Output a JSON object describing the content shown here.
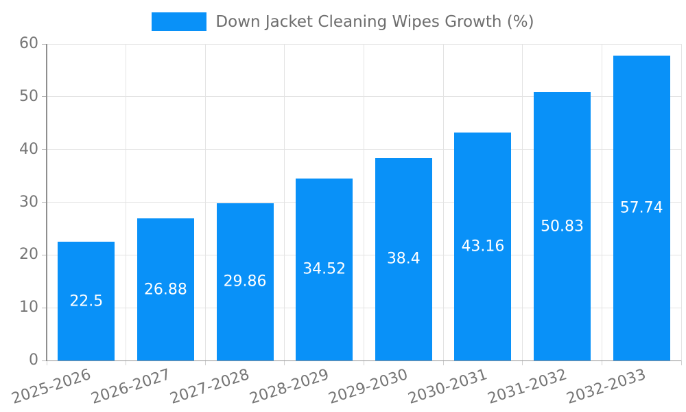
{
  "legend": {
    "label": "Down Jacket Cleaning Wipes Growth (%)"
  },
  "chart_data": {
    "type": "bar",
    "title": "",
    "xlabel": "",
    "ylabel": "",
    "categories": [
      "2025-2026",
      "2026-2027",
      "2027-2028",
      "2028-2029",
      "2029-2030",
      "2030-2031",
      "2031-2032",
      "2032-2033"
    ],
    "values": [
      22.5,
      26.88,
      29.86,
      34.52,
      38.4,
      43.16,
      50.83,
      57.74
    ],
    "value_labels": [
      "22.5",
      "26.88",
      "29.86",
      "34.52",
      "38.4",
      "43.16",
      "50.83",
      "57.74"
    ],
    "series_name": "Down Jacket Cleaning Wipes Growth (%)",
    "ylim": [
      0,
      60
    ],
    "yticks": [
      0,
      10,
      20,
      30,
      40,
      50,
      60
    ],
    "grid": true,
    "legend_position": "top",
    "xlabel_rotation_deg": -18
  },
  "colors": {
    "bar": "#0991F8",
    "value_label_text": "#ffffff",
    "grid": "#e3e3e3",
    "axis": "#8f8f8f",
    "tick_text": "#757575",
    "legend_text": "#6e6e6e",
    "background": "#ffffff"
  }
}
